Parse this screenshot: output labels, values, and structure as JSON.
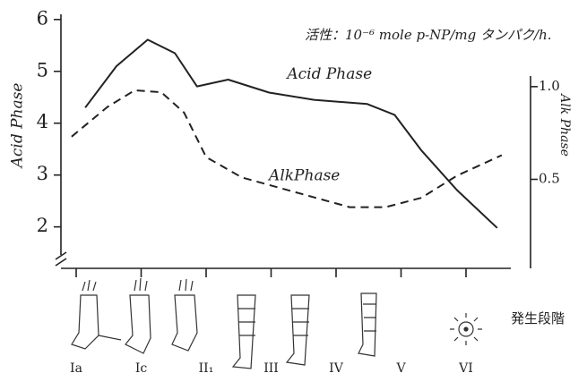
{
  "chart_data": {
    "type": "line",
    "title": "活性：10⁻⁶ mole p-NP/mg タンパク/h.",
    "y_label": "Acid Phase",
    "y2_label": "Alk Phase",
    "x_label": "発生段階",
    "xlim": [
      0,
      8.2
    ],
    "xticks": [
      {
        "value": 1,
        "label": "Ia"
      },
      {
        "value": 2,
        "label": "Ic"
      },
      {
        "value": 3,
        "label": "II₁"
      },
      {
        "value": 4,
        "label": "III"
      },
      {
        "value": 5,
        "label": "IV"
      },
      {
        "value": 6,
        "label": "V"
      },
      {
        "value": 7,
        "label": "VI"
      }
    ],
    "ylim": [
      1.2,
      6.1
    ],
    "yticks": [
      2,
      3,
      4,
      5,
      6
    ],
    "y2lim": [
      0.02,
      1.39
    ],
    "y2ticks": [
      0.5,
      {
        "value": 1.0,
        "label": "1.0"
      }
    ],
    "series": [
      {
        "name": "Acid Phase",
        "color": "#222",
        "dash": false,
        "x": [
          1.14,
          1.62,
          2.1,
          2.52,
          2.86,
          3.34,
          3.97,
          4.66,
          5.48,
          5.9,
          6.31,
          6.86,
          7.48
        ],
        "values": [
          4.3,
          5.1,
          5.61,
          5.35,
          4.71,
          4.84,
          4.59,
          4.45,
          4.37,
          4.16,
          3.48,
          2.71,
          1.98
        ]
      },
      {
        "name": "AlkPhase",
        "color": "#222",
        "dash": true,
        "axis": "y2",
        "x": [
          0.93,
          1.48,
          1.9,
          2.31,
          2.66,
          3.0,
          3.55,
          4.38,
          5.21,
          5.76,
          6.31,
          6.86,
          7.55
        ],
        "values": [
          0.73,
          0.89,
          0.98,
          0.97,
          0.86,
          0.62,
          0.51,
          0.43,
          0.35,
          0.35,
          0.4,
          0.52,
          0.63
        ]
      }
    ]
  }
}
